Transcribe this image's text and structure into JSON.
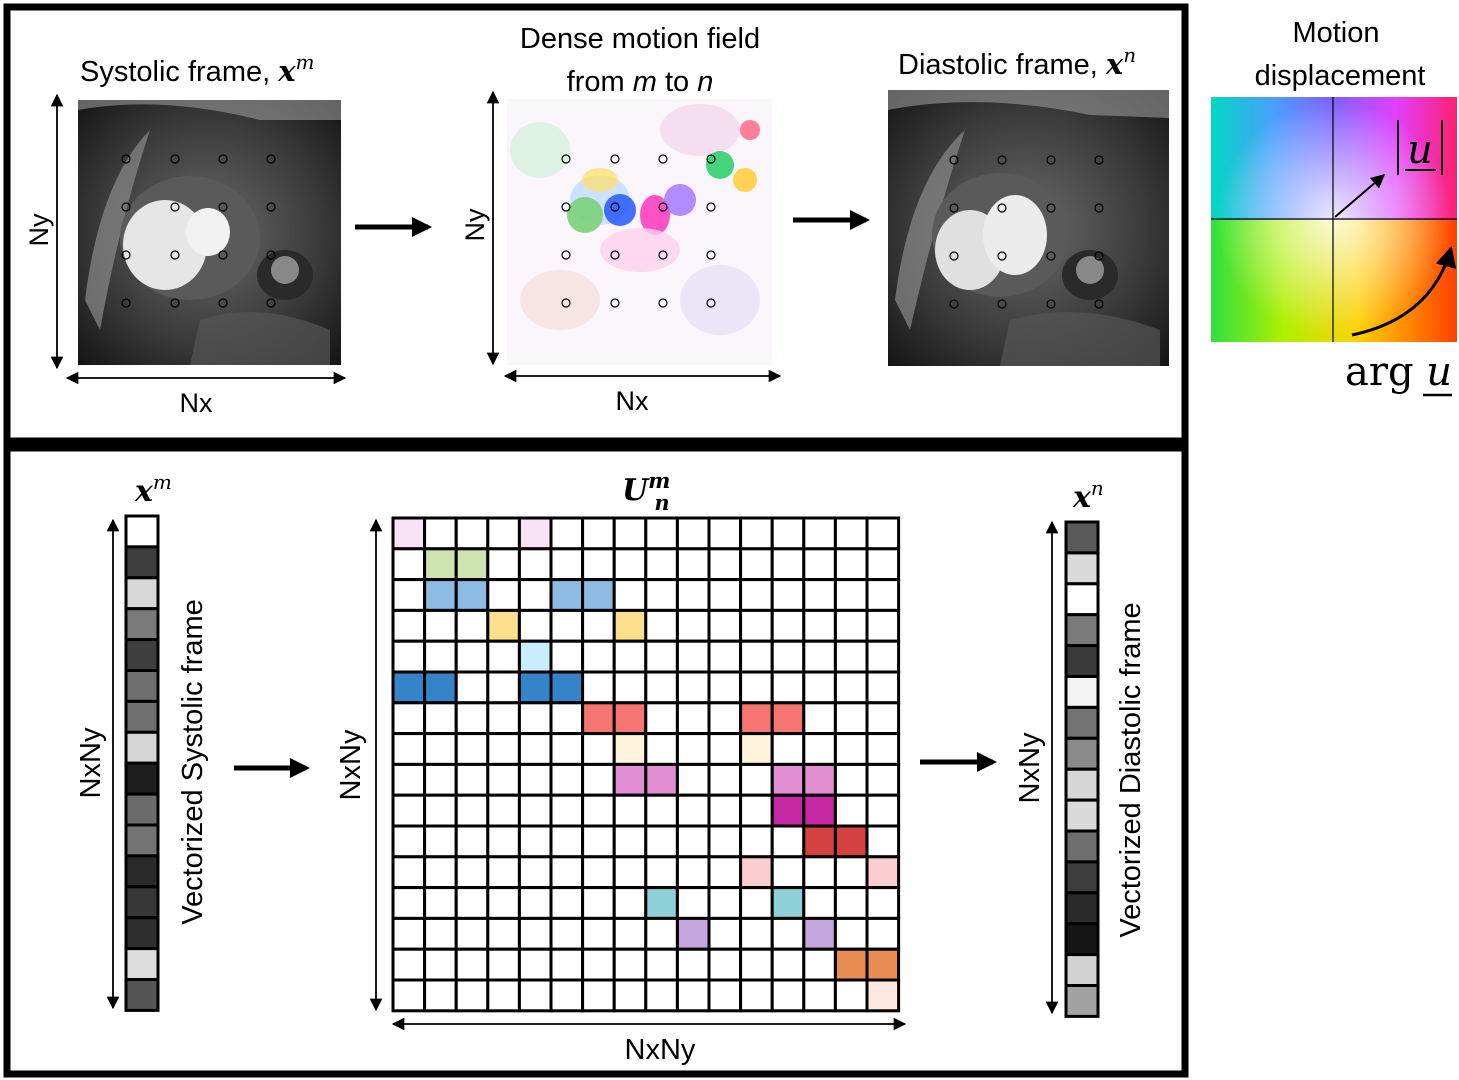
{
  "top_panel": {
    "systolic_title": "Systolic frame, ",
    "systolic_symbol": "x",
    "systolic_sup": "m",
    "motion_title_line1": "Dense motion field",
    "motion_title_line2_a": "from ",
    "motion_title_line2_m": "m",
    "motion_title_line2_b": " to ",
    "motion_title_line2_n": "n",
    "diastolic_title": "Diastolic frame, ",
    "diastolic_symbol": "x",
    "diastolic_sup": "n",
    "axis_x": "Nx",
    "axis_y": "Ny"
  },
  "legend": {
    "title_line1": "Motion",
    "title_line2": "displacement",
    "magnitude_label": "u",
    "angle_label_a": "arg ",
    "angle_label_b": "u"
  },
  "bottom_panel": {
    "xm_symbol": "x",
    "xm_sup": "m",
    "matrix_symbol": "U",
    "matrix_sub": "n",
    "matrix_sup": "m",
    "xn_symbol": "x",
    "xn_sup": "n",
    "vector_axis": "NxNy",
    "matrix_axis_y": "NxNy",
    "matrix_axis_x": "NxNy",
    "xn_axis": "NxNy",
    "systolic_vector_label": "Vectorized Systolic frame",
    "diastolic_vector_label": "Vectorized Diastolic frame",
    "systolic_vector_values": [
      "#ffffff",
      "#3d3d3d",
      "#d7d7d7",
      "#7a7a7a",
      "#3e3e3e",
      "#6e6e6e",
      "#6f6f6f",
      "#d5d5d5",
      "#1e1e1e",
      "#6c6c6c",
      "#737373",
      "#2a2a2a",
      "#373737",
      "#2e2e2e",
      "#dcdcdc",
      "#555555"
    ],
    "diastolic_vector_values": [
      "#5a5a5a",
      "#d9d9d9",
      "#ffffff",
      "#7a7a7a",
      "#3a3a3a",
      "#f3f3f3",
      "#737373",
      "#8a8a8a",
      "#d6d6d6",
      "#dadada",
      "#6e6e6e",
      "#3c3c3c",
      "#2b2b2b",
      "#151515",
      "#d2d2d2",
      "#a3a3a3"
    ],
    "matrix_cells": [
      {
        "row": 0,
        "col": 0,
        "color": "#f8e2f4"
      },
      {
        "row": 0,
        "col": 4,
        "color": "#f8e2f4"
      },
      {
        "row": 1,
        "col": 1,
        "color": "#cde4b1"
      },
      {
        "row": 1,
        "col": 2,
        "color": "#cde4b1"
      },
      {
        "row": 2,
        "col": 1,
        "color": "#8dbbe2"
      },
      {
        "row": 2,
        "col": 2,
        "color": "#8dbbe2"
      },
      {
        "row": 2,
        "col": 5,
        "color": "#8dbbe2"
      },
      {
        "row": 2,
        "col": 6,
        "color": "#8dbbe2"
      },
      {
        "row": 3,
        "col": 3,
        "color": "#fde08e"
      },
      {
        "row": 3,
        "col": 7,
        "color": "#fde08e"
      },
      {
        "row": 4,
        "col": 4,
        "color": "#c8ecfb"
      },
      {
        "row": 5,
        "col": 0,
        "color": "#3583c8"
      },
      {
        "row": 5,
        "col": 1,
        "color": "#3583c8"
      },
      {
        "row": 5,
        "col": 4,
        "color": "#3583c8"
      },
      {
        "row": 5,
        "col": 5,
        "color": "#3583c8"
      },
      {
        "row": 6,
        "col": 6,
        "color": "#f77571"
      },
      {
        "row": 6,
        "col": 7,
        "color": "#f77571"
      },
      {
        "row": 6,
        "col": 11,
        "color": "#f77571"
      },
      {
        "row": 6,
        "col": 12,
        "color": "#f77571"
      },
      {
        "row": 7,
        "col": 7,
        "color": "#fff3dc"
      },
      {
        "row": 7,
        "col": 11,
        "color": "#fff3dc"
      },
      {
        "row": 8,
        "col": 7,
        "color": "#e28ed3"
      },
      {
        "row": 8,
        "col": 8,
        "color": "#e28ed3"
      },
      {
        "row": 8,
        "col": 12,
        "color": "#e28ed3"
      },
      {
        "row": 8,
        "col": 13,
        "color": "#e28ed3"
      },
      {
        "row": 9,
        "col": 12,
        "color": "#c528a2"
      },
      {
        "row": 9,
        "col": 13,
        "color": "#c528a2"
      },
      {
        "row": 10,
        "col": 13,
        "color": "#d54040"
      },
      {
        "row": 10,
        "col": 14,
        "color": "#d54040"
      },
      {
        "row": 11,
        "col": 11,
        "color": "#fbcdd1"
      },
      {
        "row": 11,
        "col": 15,
        "color": "#fbcdd1"
      },
      {
        "row": 12,
        "col": 8,
        "color": "#8fd1d9"
      },
      {
        "row": 12,
        "col": 12,
        "color": "#8fd1d9"
      },
      {
        "row": 13,
        "col": 9,
        "color": "#c6a6de"
      },
      {
        "row": 13,
        "col": 13,
        "color": "#c6a6de"
      },
      {
        "row": 14,
        "col": 14,
        "color": "#e98d52"
      },
      {
        "row": 14,
        "col": 15,
        "color": "#e98d52"
      },
      {
        "row": 15,
        "col": 15,
        "color": "#fde9de"
      }
    ]
  }
}
